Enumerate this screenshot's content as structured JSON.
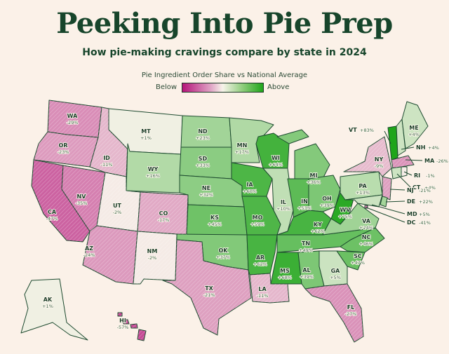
{
  "header": {
    "title": "Peeking Into Pie Prep",
    "subtitle": "How pie-making cravings compare by state in 2024"
  },
  "legend": {
    "title": "Pie Ingredient Order Share vs National Average",
    "below": "Below",
    "above": "Above",
    "colors": {
      "below": "#b5147a",
      "neutral": "#f7f3ea",
      "above": "#1fa51a"
    }
  },
  "states": [
    {
      "abbr": "WA",
      "label": "-29%",
      "value": -29
    },
    {
      "abbr": "OR",
      "label": "-23%",
      "value": -23
    },
    {
      "abbr": "CA",
      "label": "-47%",
      "value": -47
    },
    {
      "abbr": "NV",
      "label": "-35%",
      "value": -35
    },
    {
      "abbr": "ID",
      "label": "-11%",
      "value": -11
    },
    {
      "abbr": "MT",
      "label": "+1%",
      "value": 1
    },
    {
      "abbr": "WY",
      "label": "+16%",
      "value": 16
    },
    {
      "abbr": "UT",
      "label": "-2%",
      "value": -2
    },
    {
      "abbr": "CO",
      "label": "-17%",
      "value": -17
    },
    {
      "abbr": "AZ",
      "label": "-24%",
      "value": -24
    },
    {
      "abbr": "NM",
      "label": "-2%",
      "value": -2
    },
    {
      "abbr": "ND",
      "label": "+23%",
      "value": 23
    },
    {
      "abbr": "SD",
      "label": "+33%",
      "value": 33
    },
    {
      "abbr": "NE",
      "label": "+32%",
      "value": 32
    },
    {
      "abbr": "KS",
      "label": "+45%",
      "value": 45
    },
    {
      "abbr": "OK",
      "label": "+37%",
      "value": 37
    },
    {
      "abbr": "TX",
      "label": "-21%",
      "value": -21
    },
    {
      "abbr": "MN",
      "label": "+17%",
      "value": 17
    },
    {
      "abbr": "IA",
      "label": "+60%",
      "value": 60
    },
    {
      "abbr": "MO",
      "label": "+59%",
      "value": 59
    },
    {
      "abbr": "AR",
      "label": "+62%",
      "value": 62
    },
    {
      "abbr": "LA",
      "label": "-11%",
      "value": -11
    },
    {
      "abbr": "WI",
      "label": "+64%",
      "value": 64
    },
    {
      "abbr": "IL",
      "label": "+10%",
      "value": 10
    },
    {
      "abbr": "MI",
      "label": "+36%",
      "value": 36
    },
    {
      "abbr": "IN",
      "label": "+53%",
      "value": 53
    },
    {
      "abbr": "OH",
      "label": "+39%",
      "value": 39
    },
    {
      "abbr": "KY",
      "label": "+62%",
      "value": 62
    },
    {
      "abbr": "TN",
      "label": "+49%",
      "value": 49
    },
    {
      "abbr": "MS",
      "label": "+68%",
      "value": 68
    },
    {
      "abbr": "AL",
      "label": "+39%",
      "value": 39
    },
    {
      "abbr": "GA",
      "label": "+5%",
      "value": 5
    },
    {
      "abbr": "FL",
      "label": "-27%",
      "value": -27
    },
    {
      "abbr": "SC",
      "label": "+47%",
      "value": 47
    },
    {
      "abbr": "NC",
      "label": "+46%",
      "value": 46
    },
    {
      "abbr": "WV",
      "label": "+75%",
      "value": 75
    },
    {
      "abbr": "VA",
      "label": "+24%",
      "value": 24
    },
    {
      "abbr": "PA",
      "label": "+13%",
      "value": 13
    },
    {
      "abbr": "NY",
      "label": "-9%",
      "value": -9
    },
    {
      "abbr": "VT",
      "label": "+83%",
      "value": 83
    },
    {
      "abbr": "NH",
      "label": "+4%",
      "value": 4
    },
    {
      "abbr": "ME",
      "label": "+4%",
      "value": 4
    },
    {
      "abbr": "MA",
      "label": "-26%",
      "value": -26
    },
    {
      "abbr": "RI",
      "label": "-1%",
      "value": -1
    },
    {
      "abbr": "CT",
      "label": "+4%",
      "value": 4
    },
    {
      "abbr": "NJ",
      "label": "-21%",
      "value": -21
    },
    {
      "abbr": "DE",
      "label": "+22%",
      "value": 22
    },
    {
      "abbr": "MD",
      "label": "+5%",
      "value": 5
    },
    {
      "abbr": "DC",
      "label": "-41%",
      "value": -41
    },
    {
      "abbr": "AK",
      "label": "+1%",
      "value": 1
    },
    {
      "abbr": "HI",
      "label": "-57%",
      "value": -57
    }
  ]
}
